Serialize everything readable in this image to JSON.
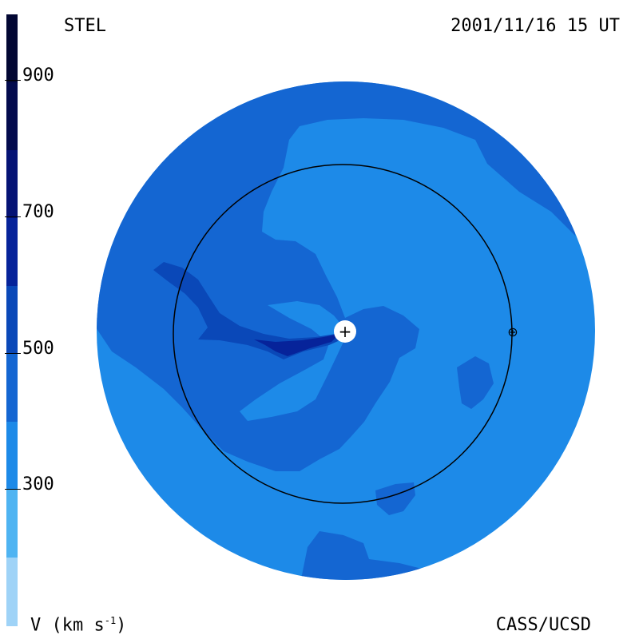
{
  "header": {
    "observatory": "STEL",
    "timestamp": "2001/11/16 15 UT"
  },
  "footer": {
    "units_prefix": "V (km s",
    "units_exp": "-1",
    "units_suffix": ")",
    "credit": "CASS/UCSD"
  },
  "colorbar": {
    "ticks": [
      "900",
      "700",
      "500",
      "300"
    ],
    "colors": {
      "lt200": "#9fd3f7",
      "200_300": "#4fb4f2",
      "300_400": "#1d8ae8",
      "400_500": "#1466d2",
      "500_600": "#0a48b8",
      "600_700": "#06239a",
      "700_800": "#051375",
      "800_900": "#030b4d",
      "gt900": "#020733"
    }
  },
  "legend": {
    "sun_symbol": "+",
    "earth_symbol": "⊕"
  }
}
